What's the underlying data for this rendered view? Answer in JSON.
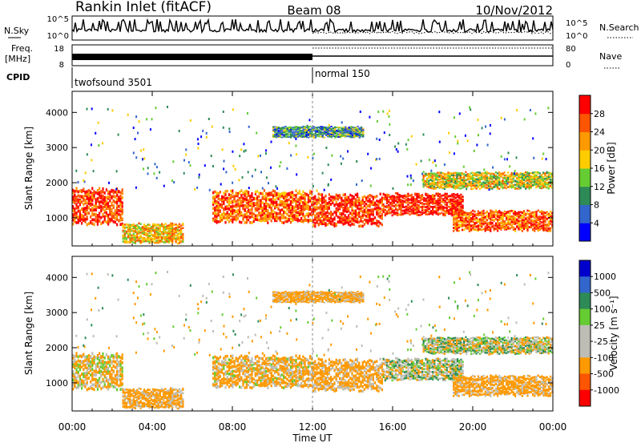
{
  "header": {
    "station": "Rankin Inlet (fitACF)",
    "beam": "Beam 08",
    "date": "10/Nov/2012"
  },
  "top_panels": {
    "nsky_label": "N.Sky",
    "nsearch_label": "N.Search",
    "nsky_ticks": [
      "10^5",
      "10^0"
    ],
    "nsearch_ticks": [
      "10^5",
      "10^0"
    ],
    "freq_label_1": "Freq.",
    "freq_label_2": "[MHz]",
    "freq_ticks": [
      "18",
      "8"
    ],
    "nave_label": "Nave",
    "nave_ticks": [
      "80",
      "0"
    ],
    "cpid_label": "CPID",
    "cpid_segments": [
      {
        "name": "twofsound 3501",
        "start_hour": 0,
        "end_hour": 12
      },
      {
        "name": "normal 150",
        "start_hour": 12,
        "end_hour": 24
      }
    ]
  },
  "chart_data": [
    {
      "type": "heatmap",
      "xlabel": "Time UT",
      "ylabel": "Slant Range [km]",
      "x_ticks": [
        "00:00",
        "04:00",
        "08:00",
        "12:00",
        "16:00",
        "20:00",
        "00:00"
      ],
      "x_range_hours": [
        0,
        24
      ],
      "y_ticks": [
        1000,
        2000,
        3000,
        4000
      ],
      "ylim": [
        200,
        4600
      ],
      "colorbar": {
        "label": "Power [dB]",
        "ticks": [
          "28",
          "24",
          "20",
          "16",
          "12",
          "8",
          "4"
        ],
        "range": [
          0,
          32
        ],
        "colors": [
          "#0000ff",
          "#3366cc",
          "#2e8b57",
          "#66cc33",
          "#ffcc00",
          "#ff9900",
          "#ff5500",
          "#ff0000"
        ]
      },
      "bands": [
        {
          "start": 0.0,
          "end": 2.5,
          "low": 850,
          "high": 1750,
          "value": 28
        },
        {
          "start": 2.5,
          "end": 5.5,
          "low": 300,
          "high": 800,
          "value": 20
        },
        {
          "start": 7.0,
          "end": 12.0,
          "low": 900,
          "high": 1700,
          "value": 26
        },
        {
          "start": 12.0,
          "end": 15.5,
          "low": 800,
          "high": 1600,
          "value": 28
        },
        {
          "start": 15.5,
          "end": 19.5,
          "low": 1100,
          "high": 1650,
          "value": 30
        },
        {
          "start": 19.0,
          "end": 24.0,
          "low": 650,
          "high": 1200,
          "value": 26
        },
        {
          "start": 17.5,
          "end": 24.0,
          "low": 1850,
          "high": 2300,
          "value": 18
        },
        {
          "start": 10.0,
          "end": 14.5,
          "low": 3300,
          "high": 3600,
          "value": 10
        }
      ]
    },
    {
      "type": "heatmap",
      "xlabel": "Time UT",
      "ylabel": "Slant Range [km]",
      "x_ticks": [
        "00:00",
        "04:00",
        "08:00",
        "12:00",
        "16:00",
        "20:00",
        "00:00"
      ],
      "x_range_hours": [
        0,
        24
      ],
      "y_ticks": [
        1000,
        2000,
        3000,
        4000
      ],
      "ylim": [
        200,
        4600
      ],
      "colorbar": {
        "label": "Velocity [m s⁻¹]",
        "ticks": [
          "1000",
          "500",
          "100",
          "25",
          "-25",
          "-100",
          "-500",
          "-1000"
        ],
        "colors": [
          "#ff0000",
          "#ff5500",
          "#ff9900",
          "#bdbdb5",
          "#bdbdb5",
          "#66cc33",
          "#2e8b57",
          "#3366cc",
          "#0000cc"
        ]
      },
      "bands": [
        {
          "start": 0.0,
          "end": 2.5,
          "low": 850,
          "high": 1750,
          "value": -100
        },
        {
          "start": 2.5,
          "end": 5.5,
          "low": 300,
          "high": 800,
          "value": -200
        },
        {
          "start": 7.0,
          "end": 12.0,
          "low": 900,
          "high": 1700,
          "value": -150
        },
        {
          "start": 12.0,
          "end": 15.5,
          "low": 800,
          "high": 1600,
          "value": -200
        },
        {
          "start": 15.5,
          "end": 19.5,
          "low": 1100,
          "high": 1650,
          "value": 0
        },
        {
          "start": 19.0,
          "end": 24.0,
          "low": 650,
          "high": 1200,
          "value": -200
        },
        {
          "start": 17.5,
          "end": 24.0,
          "low": 1850,
          "high": 2300,
          "value": 0
        },
        {
          "start": 10.0,
          "end": 14.5,
          "low": 3300,
          "high": 3600,
          "value": -200
        }
      ]
    }
  ]
}
